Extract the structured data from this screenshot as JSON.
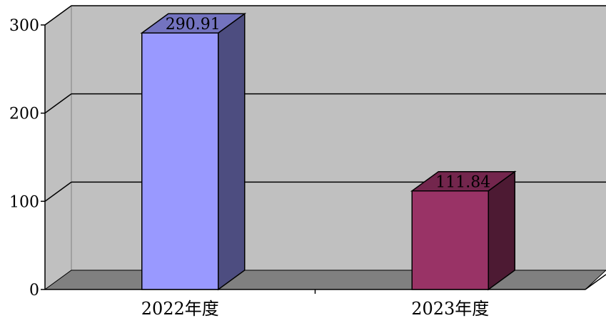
{
  "chart_data": {
    "type": "bar",
    "title": "",
    "xlabel": "",
    "ylabel": "",
    "categories": [
      "2022年度",
      "2023年度"
    ],
    "values": [
      290.91,
      111.84
    ],
    "value_labels": [
      "290.91",
      "111.84"
    ],
    "ylim": [
      0,
      300
    ],
    "yticks": [
      0,
      100,
      200,
      300
    ],
    "ytick_labels": [
      "0",
      "100",
      "200",
      "300"
    ],
    "grid": true,
    "legend": "none",
    "style": "3d-column",
    "colors": {
      "bars": [
        "#9999ff",
        "#993366"
      ],
      "bar_sides": [
        "#4d4d80",
        "#4d1a33"
      ],
      "bar_tops": [
        "#7373bf",
        "#73264d"
      ],
      "back_wall": "#c0c0c0",
      "floor": "#808080",
      "side_wall": "#c0c0c0"
    }
  }
}
